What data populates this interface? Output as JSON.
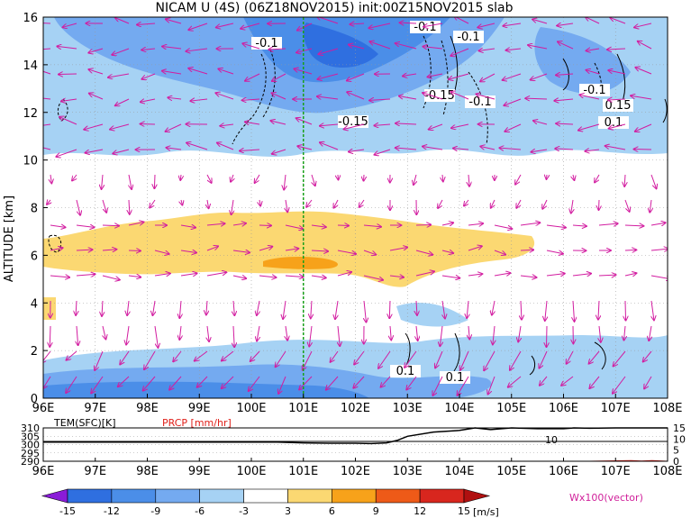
{
  "title": "NICAM U (4S) (06Z18NOV2015) init:00Z15NOV2015 slab",
  "chart_data": [
    {
      "type": "heatmap",
      "title": "NICAM U (4S) (06Z18NOV2015) init:00Z15NOV2015 slab",
      "ylabel": "ALTITUDE [km]",
      "xlim": [
        96,
        108
      ],
      "ylim": [
        0,
        16
      ],
      "grid": true,
      "x_ticks": [
        "96E",
        "97E",
        "98E",
        "99E",
        "100E",
        "101E",
        "102E",
        "103E",
        "104E",
        "105E",
        "106E",
        "107E",
        "108E"
      ],
      "y_ticks": [
        "0",
        "2",
        "4",
        "6",
        "8",
        "10",
        "12",
        "14",
        "16"
      ],
      "marker_line_lon": 101,
      "contour_labels": [
        "-0.1",
        "-0.1",
        "-0.1",
        "-0.15",
        "-0.15",
        "-0.1",
        "-0.1",
        "0.15",
        "0.1",
        "0.1",
        "0.1",
        "-0.1"
      ],
      "colorbar": {
        "levels": [
          "-15",
          "-12",
          "-9",
          "-6",
          "-3",
          "3",
          "6",
          "9",
          "12",
          "15"
        ],
        "colors": [
          "#8a1cd8",
          "#2f6fe0",
          "#4b8ee8",
          "#74aaf0",
          "#a6d2f4",
          "#ffffff",
          "#fbd872",
          "#f7a21a",
          "#ee5a18",
          "#d8261e",
          "#b01010"
        ],
        "unit": "[m/s]",
        "vector_label": "Wx100(vector)"
      }
    },
    {
      "type": "line",
      "series": [
        {
          "name": "TEM(SFC)[K]",
          "x": [
            96,
            97,
            98,
            99,
            100,
            100.5,
            101,
            101.5,
            102,
            102.3,
            102.6,
            102.8,
            103,
            103.5,
            104,
            104.3,
            104.6,
            105,
            105.5,
            106,
            106.2,
            106.5,
            107,
            107.5,
            108
          ],
          "values": [
            301.5,
            301.5,
            301.5,
            301.5,
            301.5,
            301.5,
            301,
            300.8,
            300.8,
            300.6,
            301,
            302.5,
            305,
            307.5,
            308.5,
            310,
            309,
            310,
            309.5,
            309.5,
            310,
            309.8,
            310,
            310,
            310
          ]
        },
        {
          "name": "PRCP [mm/hr]",
          "x": [
            96,
            106.5,
            107,
            107.3,
            107.5,
            107.7,
            108
          ],
          "values": [
            0,
            0,
            0.2,
            0.3,
            0.1,
            0.3,
            0
          ]
        }
      ],
      "xlim": [
        96,
        108
      ],
      "ylim_left": [
        290,
        310
      ],
      "ylim_right": [
        0,
        15
      ],
      "left_ticks": [
        "290",
        "295",
        "300",
        "305",
        "310"
      ],
      "right_ticks": [
        "0",
        "5",
        "10",
        "15"
      ],
      "x_ticks": [
        "96E",
        "97E",
        "98E",
        "99E",
        "100E",
        "101E",
        "102E",
        "103E",
        "104E",
        "105E",
        "106E",
        "107E",
        "108E"
      ],
      "annotation": "10"
    }
  ]
}
